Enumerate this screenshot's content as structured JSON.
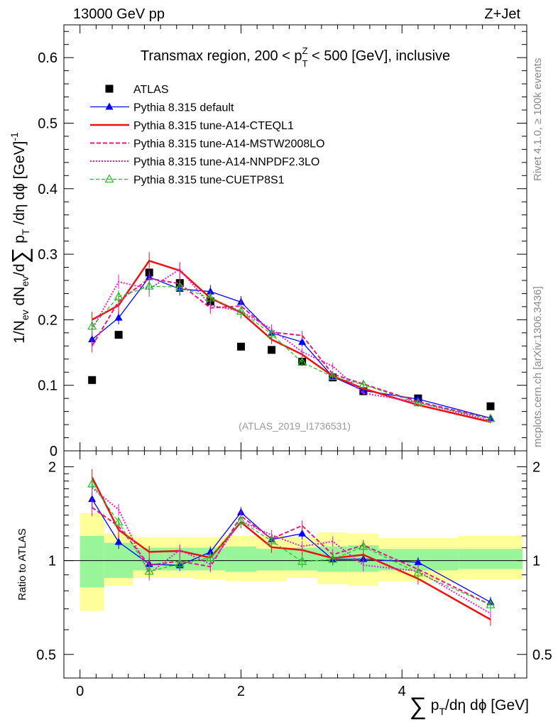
{
  "header": {
    "left": "13000 GeV pp",
    "right": "Z+Jet"
  },
  "side_labels": {
    "rivet": "Rivet 4.1.0, ≥ 100k events",
    "mcplots": "mcplots.cern.ch [arXiv:1306.3436]"
  },
  "chart_data": {
    "type": "line",
    "title": "Transmax region, 200 < p_T^Z < 500 [GeV], inclusive",
    "title_parts": {
      "pre": "Transmax region, 200 < p",
      "sup": "Z",
      "sub": "T",
      "post": " < 500 [GeV], inclusive"
    },
    "analysis_id": "(ATLAS_2019_I1736531)",
    "xlabel": "Σ p_T/dη dφ [GeV]",
    "ylabel": "1/N_ev dN_ev/d Σ p_T/dη dφ [GeV]^-1",
    "ratio_ylabel": "Ratio to ATLAS",
    "xlim": [
      -0.2,
      5.55
    ],
    "ylim": [
      0,
      0.65
    ],
    "ratio_ylim": [
      0.42,
      2.25
    ],
    "x_ticks": [
      "0",
      "2",
      "4"
    ],
    "x_tick_values": [
      0,
      2,
      4
    ],
    "y_ticks": [
      "0",
      "0.1",
      "0.2",
      "0.3",
      "0.4",
      "0.5",
      "0.6"
    ],
    "y_tick_values": [
      0,
      0.1,
      0.2,
      0.3,
      0.4,
      0.5,
      0.6
    ],
    "ratio_ticks": [
      "0.5",
      "1",
      "2"
    ],
    "ratio_tick_values": [
      0.5,
      1,
      2
    ],
    "x": [
      0.15,
      0.48,
      0.86,
      1.24,
      1.62,
      2.0,
      2.38,
      2.76,
      3.14,
      3.52,
      4.2,
      5.1
    ],
    "bin_edges": [
      0.0,
      0.3,
      0.66,
      1.05,
      1.43,
      1.81,
      2.19,
      2.57,
      2.95,
      3.33,
      3.71,
      4.7,
      5.5
    ],
    "series": [
      {
        "name": "ATLAS",
        "style": "data",
        "color": "#000000",
        "values": [
          0.108,
          0.177,
          0.272,
          0.256,
          0.228,
          0.159,
          0.154,
          0.136,
          0.112,
          0.091,
          0.08,
          0.068
        ],
        "errors": [
          0.003,
          0.003,
          0.004,
          0.004,
          0.004,
          0.003,
          0.003,
          0.003,
          0.002,
          0.002,
          0.002,
          0.002
        ]
      },
      {
        "name": "Pythia 8.315 default",
        "style": "solid",
        "color": "#0000ff",
        "marker": "triangle-filled",
        "values": [
          0.17,
          0.203,
          0.265,
          0.247,
          0.243,
          0.227,
          0.18,
          0.166,
          0.113,
          0.092,
          0.079,
          0.05
        ],
        "errors": [
          0.01,
          0.01,
          0.012,
          0.01,
          0.01,
          0.009,
          0.007,
          0.007,
          0.005,
          0.004,
          0.003,
          0.002
        ]
      },
      {
        "name": "Pythia 8.315 tune-A14-CTEQL1",
        "style": "solid-thick",
        "color": "#ee1111",
        "values": [
          0.2,
          0.222,
          0.29,
          0.275,
          0.233,
          0.211,
          0.17,
          0.147,
          0.114,
          0.095,
          0.07,
          0.044
        ],
        "errors": [
          0.012,
          0.011,
          0.013,
          0.012,
          0.01,
          0.009,
          0.007,
          0.006,
          0.005,
          0.004,
          0.003,
          0.002
        ]
      },
      {
        "name": "Pythia 8.315 tune-A14-MSTW2008LO",
        "style": "dashed",
        "color": "#e8177f",
        "values": [
          0.16,
          0.228,
          0.263,
          0.255,
          0.218,
          0.221,
          0.181,
          0.176,
          0.117,
          0.102,
          0.075,
          0.049
        ],
        "errors": [
          0.01,
          0.01,
          0.012,
          0.01,
          0.009,
          0.009,
          0.007,
          0.007,
          0.005,
          0.004,
          0.003,
          0.002
        ]
      },
      {
        "name": "Pythia 8.315 tune-A14-NNPDF2.3LO",
        "style": "dotted",
        "color": "#e020d0",
        "values": [
          0.185,
          0.258,
          0.247,
          0.277,
          0.222,
          0.213,
          0.186,
          0.151,
          0.129,
          0.088,
          0.074,
          0.046
        ],
        "errors": [
          0.011,
          0.011,
          0.012,
          0.011,
          0.01,
          0.009,
          0.007,
          0.006,
          0.005,
          0.004,
          0.003,
          0.002
        ]
      },
      {
        "name": "Pythia 8.315 tune-CUETP8S1",
        "style": "dashed-thin",
        "color": "#22bb22",
        "marker": "triangle-open",
        "values": [
          0.19,
          0.235,
          0.251,
          0.25,
          0.233,
          0.213,
          0.178,
          0.135,
          0.113,
          0.101,
          0.073,
          0.049
        ],
        "errors": [
          0.011,
          0.01,
          0.012,
          0.01,
          0.009,
          0.009,
          0.007,
          0.006,
          0.005,
          0.004,
          0.003,
          0.002
        ]
      }
    ],
    "ratio_band_green": [
      [
        0.82,
        1.2
      ],
      [
        0.88,
        1.14
      ],
      [
        0.93,
        1.1
      ],
      [
        0.93,
        1.1
      ],
      [
        0.93,
        1.1
      ],
      [
        0.92,
        1.11
      ],
      [
        0.93,
        1.09
      ],
      [
        0.93,
        1.1
      ],
      [
        0.92,
        1.11
      ],
      [
        0.92,
        1.12
      ],
      [
        0.93,
        1.09
      ],
      [
        0.94,
        1.09
      ]
    ],
    "ratio_band_yellow": [
      [
        0.69,
        1.42
      ],
      [
        0.83,
        1.22
      ],
      [
        0.88,
        1.19
      ],
      [
        0.88,
        1.19
      ],
      [
        0.87,
        1.19
      ],
      [
        0.86,
        1.2
      ],
      [
        0.86,
        1.2
      ],
      [
        0.88,
        1.19
      ],
      [
        0.84,
        1.23
      ],
      [
        0.83,
        1.22
      ],
      [
        0.86,
        1.18
      ],
      [
        0.87,
        1.2
      ]
    ],
    "legend_position": "top-left"
  }
}
